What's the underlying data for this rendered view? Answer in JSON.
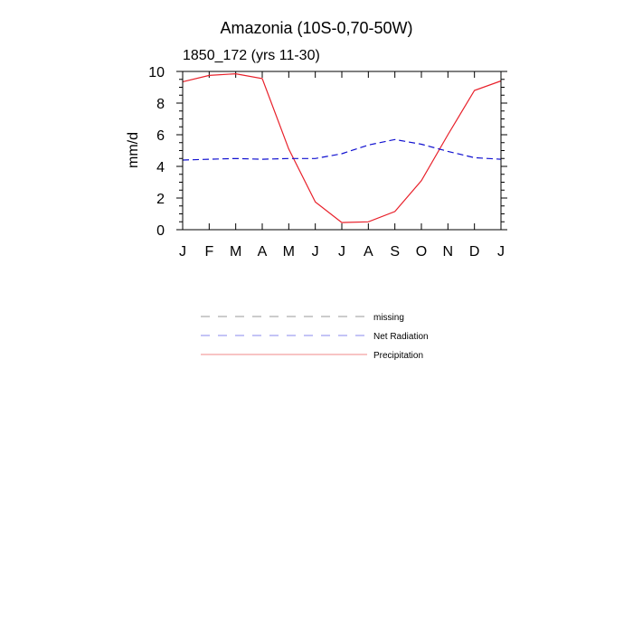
{
  "chart_data": {
    "type": "line",
    "title": "Amazonia (10S-0,70-50W)",
    "subtitle": "1850_172 (yrs 11-30)",
    "ylabel": "mm/d",
    "xlabel": "",
    "categories": [
      "J",
      "F",
      "M",
      "A",
      "M",
      "J",
      "J",
      "A",
      "S",
      "O",
      "N",
      "D",
      "J"
    ],
    "ylim": [
      0,
      10
    ],
    "yticks": [
      0,
      2,
      4,
      6,
      8,
      10
    ],
    "grid": false,
    "legend_placement": "bottom",
    "series": [
      {
        "name": "Precipitation",
        "color": "#e8202a",
        "dash": "solid",
        "values": [
          9.35,
          9.75,
          9.85,
          9.55,
          5.1,
          1.75,
          0.45,
          0.5,
          1.15,
          3.1,
          6.0,
          8.8,
          9.4
        ]
      },
      {
        "name": "Net Radiation",
        "color": "#1010d0",
        "dash": "dashed",
        "values": [
          4.4,
          4.45,
          4.5,
          4.45,
          4.5,
          4.5,
          4.8,
          5.35,
          5.7,
          5.4,
          4.95,
          4.55,
          4.45
        ]
      }
    ],
    "legend": [
      {
        "label": "missing",
        "color": "#999999",
        "dash": "dashed"
      },
      {
        "label": "Net Radiation",
        "color": "#8a8aee",
        "dash": "dashed"
      },
      {
        "label": "Precipitation",
        "color": "#f08a8a",
        "dash": "solid"
      }
    ]
  }
}
